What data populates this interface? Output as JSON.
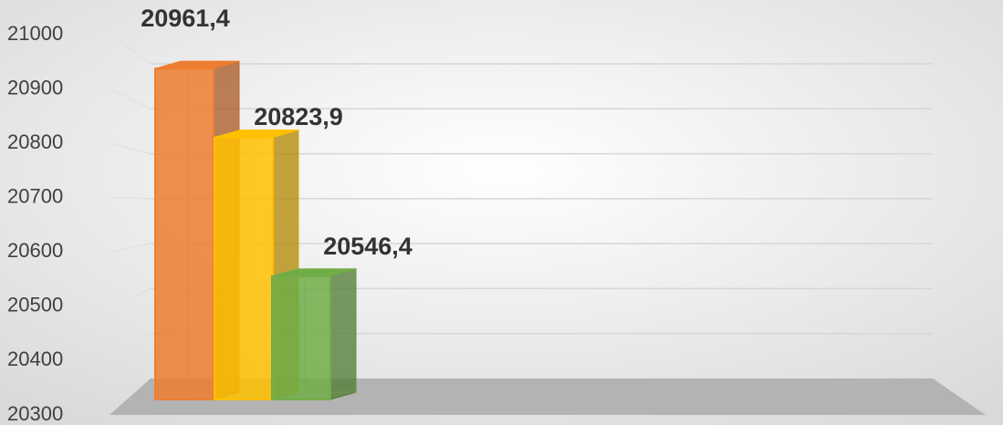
{
  "chart_data": {
    "type": "bar3d",
    "categories": [
      null,
      null,
      null
    ],
    "values": [
      20961.4,
      20823.9,
      20546.4
    ],
    "value_labels": [
      "20961,4",
      "20823,9",
      "20546,4"
    ],
    "colors": [
      "#ed7d31",
      "#ffc000",
      "#70ad47"
    ],
    "ylim": [
      20300,
      21000
    ],
    "yticks": [
      20300,
      20400,
      20500,
      20600,
      20700,
      20800,
      20900,
      21000
    ],
    "grid": true
  }
}
